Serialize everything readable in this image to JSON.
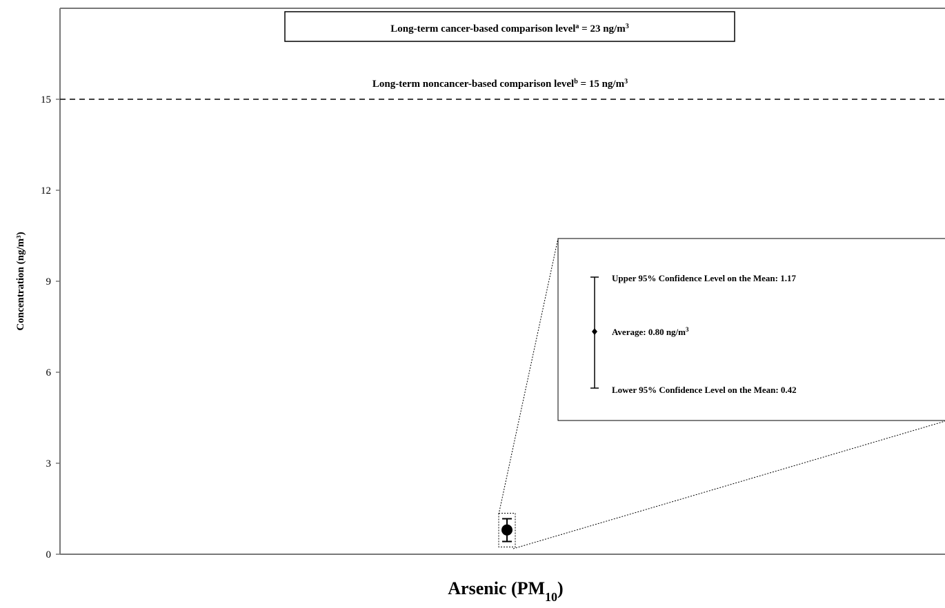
{
  "chart_data": {
    "type": "scatter",
    "category": "Arsenic (PM₁₀)",
    "xlabel_main": "Arsenic (PM",
    "xlabel_sub": "10",
    "xlabel_close": ")",
    "ylabel": "Concentration (ng/m³)",
    "ylim": [
      0,
      18
    ],
    "yticks": [
      0,
      3,
      6,
      9,
      12,
      15
    ],
    "grid": false,
    "points": [
      {
        "category": "Arsenic (PM₁₀)",
        "average": 0.8,
        "lower_95": 0.42,
        "upper_95": 1.17,
        "unit": "ng/m³"
      }
    ],
    "reference_lines": [
      {
        "value": 15,
        "style": "dashed",
        "label_pre": "Long-term noncancer-based comparison level",
        "label_sup": "b",
        "label_post": " = 15 ng/m",
        "unit_sup": "3"
      },
      {
        "value": 23,
        "style": "offscale-box",
        "label_pre": "Long-term cancer-based comparison level",
        "label_sup": "a",
        "label_post": " = 23 ng/m",
        "unit_sup": "3"
      }
    ],
    "inset": {
      "upper_text": "Upper 95% Confidence Level on the Mean: 1.17",
      "average_text": "Average: 0.80 ng/m",
      "average_sup": "3",
      "lower_text": "Lower 95% Confidence Level on the Mean: 0.42"
    }
  }
}
